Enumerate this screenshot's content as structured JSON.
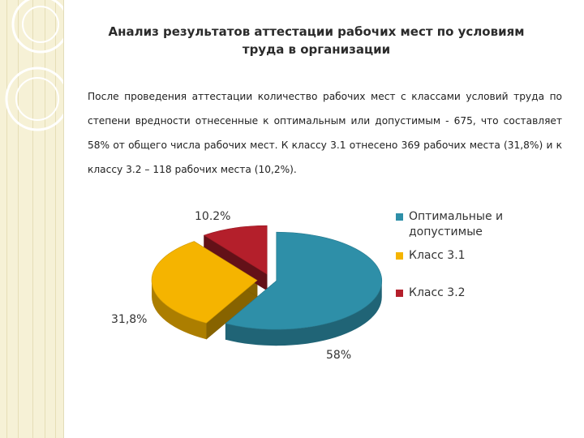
{
  "slide": {
    "title": "Анализ результатов аттестации рабочих мест по условиям труда в организации",
    "paragraph": "После проведения аттестации количество рабочих мест с классами условий труда по степени вредности отнесенные к оптимальным или допустимым - 675, что составляет 58% от общего числа рабочих мест. К классу 3.1 отнесено 369 рабочих места (31,8%) и к классу 3.2 – 118 рабочих места (10,2%)."
  },
  "chart_data": {
    "type": "pie",
    "title": "",
    "categories": [
      "Оптимальные и допустимые",
      "Класс 3.1",
      "Класс 3.2"
    ],
    "values": [
      58,
      31.8,
      10.2
    ],
    "labels": [
      "58%",
      "31,8%",
      "10.2%"
    ],
    "colors": [
      "#2e8fa8",
      "#f5b400",
      "#b41f2b"
    ],
    "exploded": true,
    "three_d": true,
    "legend_position": "right"
  }
}
